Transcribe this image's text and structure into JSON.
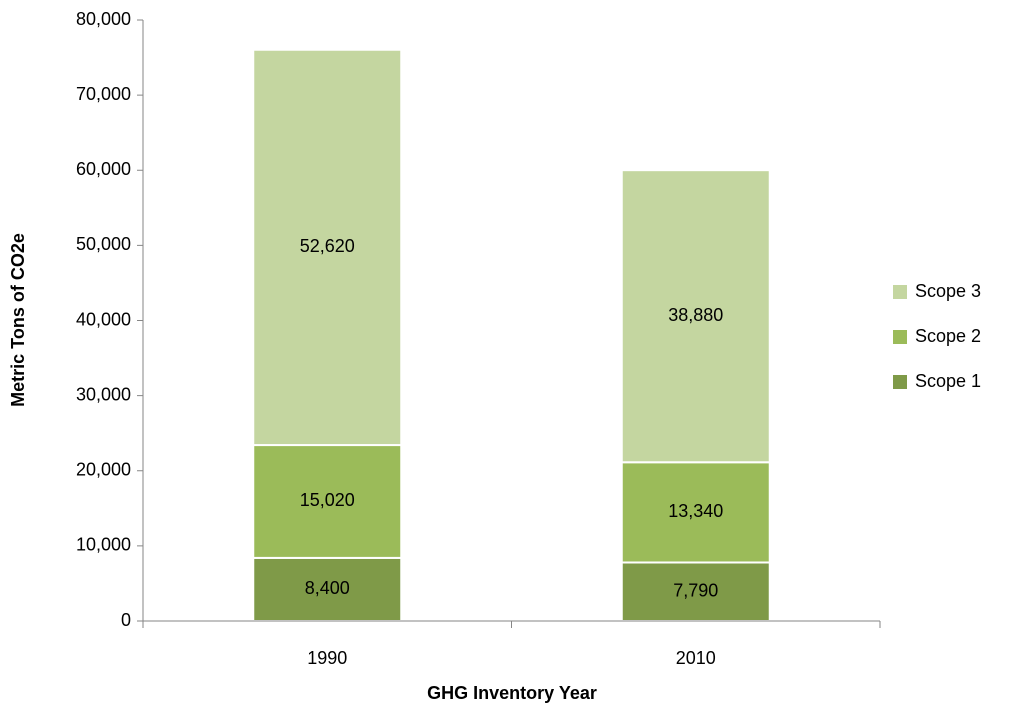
{
  "chart_data": {
    "type": "stacked_bar",
    "x_label": "GHG Inventory Year",
    "y_label": "Metric Tons of CO2e",
    "categories": [
      "1990",
      "2010"
    ],
    "series": [
      {
        "name": "Scope 1",
        "color": "#7f9a48",
        "values": [
          8400,
          7790
        ],
        "value_labels": [
          "8,400",
          "7,790"
        ]
      },
      {
        "name": "Scope 2",
        "color": "#9bbb59",
        "values": [
          15020,
          13340
        ],
        "value_labels": [
          "15,020",
          "13,340"
        ]
      },
      {
        "name": "Scope 3",
        "color": "#c4d6a0",
        "values": [
          52620,
          38880
        ],
        "value_labels": [
          "52,620",
          "38,880"
        ]
      }
    ],
    "ylim": [
      0,
      80000
    ],
    "yticks": [
      0,
      {
        "value": 10000,
        "label": "10,000"
      },
      {
        "value": 20000,
        "label": "20,000"
      },
      {
        "value": 30000,
        "label": "30,000"
      },
      {
        "value": 40000,
        "label": "40,000"
      },
      {
        "value": 50000,
        "label": "50,000"
      },
      {
        "value": 60000,
        "label": "60,000"
      },
      {
        "value": 70000,
        "label": "70,000"
      },
      {
        "value": 80000,
        "label": "80,000"
      }
    ],
    "legend": "right"
  }
}
